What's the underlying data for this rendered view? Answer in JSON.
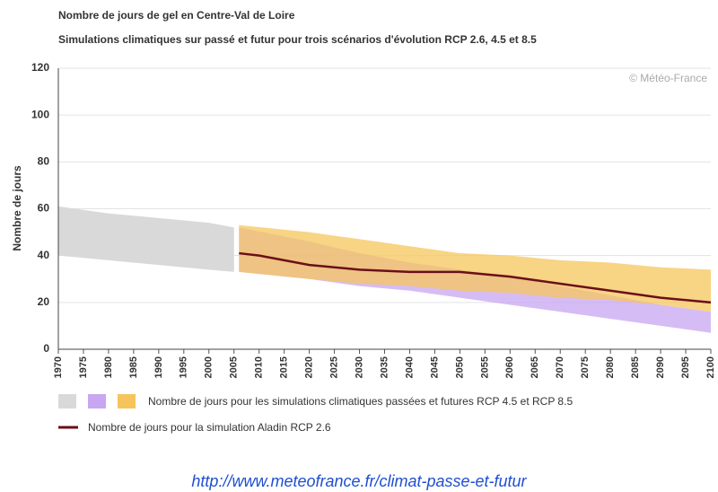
{
  "chart_data": {
    "type": "range-area",
    "title": "Nombre de jours de gel en Centre-Val de Loire",
    "subtitle": "Simulations climatiques sur passé et futur pour trois scénarios d'évolution RCP 2.6, 4.5 et 8.5",
    "annotation": "© Météo-France",
    "y_label": "Nombre de jours",
    "xlim": [
      1970,
      2100
    ],
    "xticks": [
      1970,
      1975,
      1980,
      1985,
      1990,
      1995,
      2000,
      2005,
      2010,
      2015,
      2020,
      2025,
      2030,
      2035,
      2040,
      2045,
      2050,
      2055,
      2060,
      2065,
      2070,
      2075,
      2080,
      2085,
      2090,
      2095,
      2100
    ],
    "ylim": [
      0,
      120
    ],
    "yticks": [
      0,
      20,
      40,
      60,
      80,
      100,
      120
    ],
    "grid": true,
    "band_legend": "Nombre de jours pour les simulations climatiques passées et futures RCP 4.5 et RCP 8.5",
    "bands": [
      {
        "color": "#d9d9d9",
        "x": [
          1970,
          1980,
          1990,
          2000,
          2005
        ],
        "upper": [
          61,
          58,
          56,
          54,
          52
        ],
        "lower": [
          40,
          38,
          36,
          34,
          33
        ]
      },
      {
        "color": "#c8a6f2",
        "x": [
          2006,
          2020,
          2030,
          2040,
          2050,
          2060,
          2070,
          2080,
          2090,
          2100
        ],
        "upper": [
          52,
          46,
          41,
          37,
          34,
          31,
          27,
          23,
          19,
          16
        ],
        "lower": [
          33,
          30,
          27,
          25,
          22,
          19,
          16,
          13,
          10,
          7
        ]
      },
      {
        "color": "#f5c55c",
        "x": [
          2006,
          2020,
          2030,
          2040,
          2050,
          2060,
          2070,
          2080,
          2090,
          2100
        ],
        "upper": [
          53,
          50,
          47,
          44,
          41,
          40,
          38,
          37,
          35,
          34
        ],
        "lower": [
          33,
          30,
          28,
          27,
          25,
          24,
          22,
          21,
          19,
          16
        ]
      }
    ],
    "series": [
      {
        "name": "Nombre de jours pour la simulation Aladin RCP 2.6",
        "color": "#6b0f1a",
        "x": [
          2006,
          2010,
          2020,
          2030,
          2040,
          2050,
          2060,
          2070,
          2080,
          2090,
          2100
        ],
        "values": [
          41,
          40,
          36,
          34,
          33,
          33,
          31,
          28,
          25,
          22,
          20
        ]
      }
    ],
    "source": "http://www.meteofrance.fr/climat-passe-et-futur"
  }
}
